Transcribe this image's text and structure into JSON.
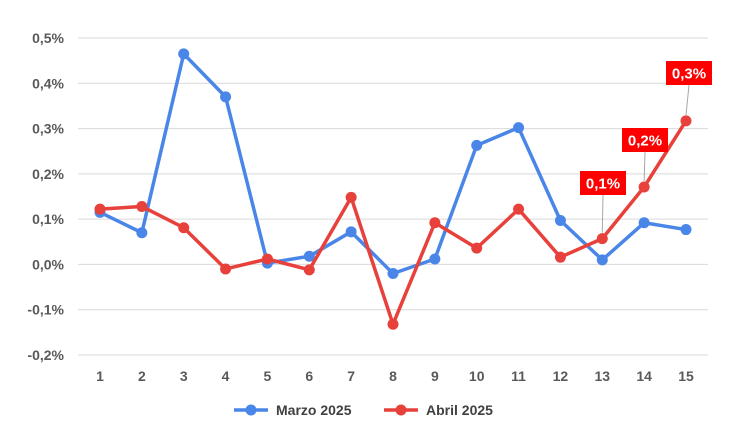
{
  "chart_data": {
    "type": "line",
    "title": "",
    "xlabel": "",
    "ylabel": "",
    "x": [
      1,
      2,
      3,
      4,
      5,
      6,
      7,
      8,
      9,
      10,
      11,
      12,
      13,
      14,
      15
    ],
    "x_tick_labels": [
      "1",
      "2",
      "3",
      "4",
      "5",
      "6",
      "7",
      "8",
      "9",
      "10",
      "11",
      "12",
      "13",
      "14",
      "15"
    ],
    "ylim": [
      -0.2,
      0.5
    ],
    "y_ticks": [
      0.5,
      0.4,
      0.3,
      0.2,
      0.1,
      0.0,
      -0.1,
      -0.2
    ],
    "y_tick_labels": [
      "0,5%",
      "0,4%",
      "0,3%",
      "0,2%",
      "0,1%",
      "0,0%",
      "-0,1%",
      "-0,2%"
    ],
    "y_unit": "%",
    "grid": "horizontal",
    "legend_position": "bottom",
    "series": [
      {
        "name": "Marzo 2025",
        "color": "#4a86e8",
        "values": [
          0.115,
          0.07,
          0.465,
          0.37,
          0.003,
          0.018,
          0.072,
          -0.02,
          0.012,
          0.263,
          0.302,
          0.097,
          0.01,
          0.092,
          0.077
        ]
      },
      {
        "name": "Abril 2025",
        "color": "#e8403a",
        "values": [
          0.122,
          0.128,
          0.081,
          -0.01,
          0.012,
          -0.012,
          0.148,
          -0.132,
          0.092,
          0.036,
          0.122,
          0.016,
          0.057,
          0.171,
          0.317
        ]
      }
    ],
    "annotations": [
      {
        "series": "Abril 2025",
        "x": 13,
        "text": "0,1%"
      },
      {
        "series": "Abril 2025",
        "x": 14,
        "text": "0,2%"
      },
      {
        "series": "Abril 2025",
        "x": 15,
        "text": "0,3%"
      }
    ],
    "annotation_color": "#ff0000",
    "grid_color": "#d9d9d9"
  }
}
